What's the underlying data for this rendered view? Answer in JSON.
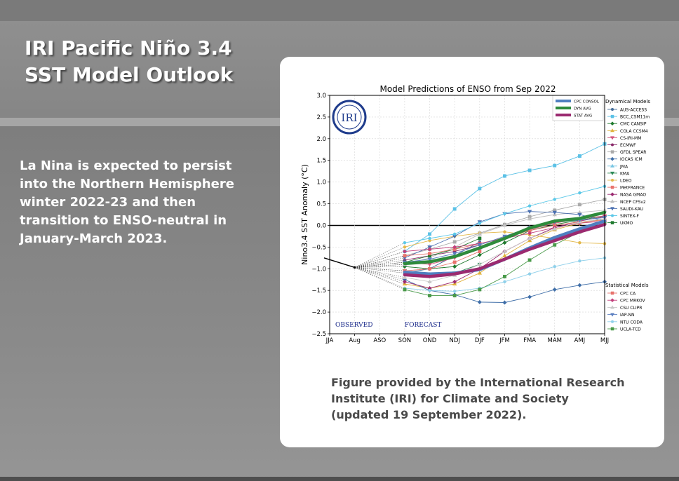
{
  "slide": {
    "title_lines": [
      "IRI Pacific Niño 3.4",
      "SST Model Outlook"
    ],
    "body_lines": [
      "La Nina is expected to persist",
      "into the Northern Hemisphere",
      "winter 2022-23 and then",
      "transition to ENSO-neutral in",
      "January-March 2023."
    ],
    "caption_lines": [
      "Figure provided by the International Research",
      "Institute (IRI) for Climate and Society",
      "(updated 19 September 2022)."
    ]
  },
  "chart_data": {
    "type": "line",
    "title": "Model Predictions of ENSO from Sep 2022",
    "xlabel": "",
    "ylabel": "Nino3.4 SST Anomaly (°C)",
    "logo_text": "IRI",
    "categories": [
      "JJA",
      "Aug",
      "ASO",
      "SON",
      "OND",
      "NDJ",
      "DJF",
      "JFM",
      "FMA",
      "MAM",
      "AMJ",
      "MJJ"
    ],
    "ylim": [
      -2.5,
      3.0
    ],
    "yticks": [
      "3.0",
      "2.5",
      "2.0",
      "1.5",
      "1.0",
      "0.5",
      "0.0",
      "−0.5",
      "−1.0",
      "−1.5",
      "−2.0",
      "−2.5"
    ],
    "ytick_values": [
      3.0,
      2.5,
      2.0,
      1.5,
      1.0,
      0.5,
      0.0,
      -0.5,
      -1.0,
      -1.5,
      -2.0,
      -2.5
    ],
    "observed_label": "OBSERVED",
    "forecast_label": "FORECAST",
    "observed": [
      -0.75,
      -0.97
    ],
    "legend_avg_title": "",
    "legend_dyn_title": "Dynamical Models",
    "legend_stat_title": "Statistical Models",
    "avg_series": [
      {
        "name": "CPC CONSOL",
        "color": "#4f7fc0",
        "values": [
          null,
          null,
          null,
          -1.08,
          -1.12,
          -1.1,
          -1.02,
          -0.78,
          -0.52,
          -0.28,
          -0.08,
          0.1
        ]
      },
      {
        "name": "DYN AVG",
        "color": "#2e8b3c",
        "values": [
          null,
          null,
          null,
          -0.88,
          -0.84,
          -0.72,
          -0.52,
          -0.3,
          -0.06,
          0.1,
          0.16,
          0.3
        ]
      },
      {
        "name": "STAT AVG",
        "color": "#9b2a70",
        "values": [
          null,
          null,
          null,
          -1.14,
          -1.18,
          -1.12,
          -1.0,
          -0.78,
          -0.55,
          -0.35,
          -0.15,
          0.02
        ]
      }
    ],
    "dynamical_models": [
      {
        "name": "AUS-ACCESS",
        "color": "#446e9a",
        "marker": "o",
        "values": [
          null,
          null,
          null,
          -1.1,
          -1.0,
          -0.7,
          -0.38,
          null,
          null,
          null,
          null,
          null
        ]
      },
      {
        "name": "BCC_CSM11m",
        "color": "#5bc1e6",
        "marker": "s",
        "values": [
          null,
          null,
          null,
          -0.6,
          -0.2,
          0.38,
          0.85,
          1.14,
          1.27,
          1.38,
          1.6,
          1.88
        ]
      },
      {
        "name": "CMC CANSIP",
        "color": "#1f7a2e",
        "marker": "D",
        "values": [
          null,
          null,
          null,
          -0.95,
          -1.0,
          -0.95,
          -0.68,
          -0.4,
          -0.12,
          0.02,
          0.12,
          0.22
        ]
      },
      {
        "name": "COLA CCSM4",
        "color": "#e0b13a",
        "marker": "^",
        "values": [
          null,
          null,
          null,
          -1.35,
          -1.45,
          -1.35,
          -1.1,
          -0.7,
          -0.35,
          -0.1,
          0.05,
          0.15
        ]
      },
      {
        "name": "CS-IRI-MM",
        "color": "#d4547c",
        "marker": "v",
        "values": [
          null,
          null,
          null,
          -0.85,
          -0.9,
          -0.75,
          -0.55,
          -0.3,
          -0.1,
          0.05,
          0.15,
          0.22
        ]
      },
      {
        "name": "ECMWF",
        "color": "#8a2a6a",
        "marker": "o",
        "values": [
          null,
          null,
          null,
          -0.8,
          -0.7,
          -0.6,
          -0.45,
          null,
          null,
          null,
          null,
          null
        ]
      },
      {
        "name": "GFDL SPEAR",
        "color": "#aaaaaa",
        "marker": "s",
        "values": [
          null,
          null,
          null,
          -0.7,
          -0.55,
          -0.38,
          -0.18,
          0.02,
          0.2,
          0.35,
          0.48,
          0.6
        ]
      },
      {
        "name": "IOCAS ICM",
        "color": "#3f6ea8",
        "marker": "D",
        "values": [
          null,
          null,
          null,
          -1.25,
          -1.5,
          -1.6,
          -1.77,
          -1.78,
          -1.65,
          -1.48,
          -1.38,
          -1.3
        ]
      },
      {
        "name": "JMA",
        "color": "#78c6e3",
        "marker": "^",
        "values": [
          null,
          null,
          null,
          -0.9,
          -0.82,
          -0.7,
          -0.52,
          null,
          null,
          null,
          null,
          null
        ]
      },
      {
        "name": "KMA",
        "color": "#2e8b57",
        "marker": "v",
        "values": [
          null,
          null,
          null,
          -1.05,
          -1.15,
          -1.1,
          -0.9,
          null,
          null,
          null,
          null,
          null
        ]
      },
      {
        "name": "LDEO",
        "color": "#e3b84a",
        "marker": "o",
        "values": [
          null,
          null,
          null,
          -0.5,
          -0.35,
          -0.25,
          -0.18,
          -0.15,
          -0.22,
          -0.3,
          -0.4,
          -0.42
        ]
      },
      {
        "name": "MetFRANCE",
        "color": "#e8736d",
        "marker": "s",
        "values": [
          null,
          null,
          null,
          -1.05,
          -1.0,
          -0.85,
          -0.6,
          null,
          null,
          null,
          null,
          null
        ]
      },
      {
        "name": "NASA GMAO",
        "color": "#9b2a70",
        "marker": "D",
        "values": [
          null,
          null,
          null,
          -1.3,
          -1.45,
          -1.3,
          -1.0,
          -0.6,
          -0.3,
          -0.05,
          0.1,
          0.2
        ]
      },
      {
        "name": "NCEP CFSv2",
        "color": "#c0c0c0",
        "marker": "^",
        "values": [
          null,
          null,
          null,
          -0.9,
          -0.75,
          -0.5,
          -0.2,
          0.0,
          0.15,
          0.25,
          0.3,
          0.35
        ]
      },
      {
        "name": "SAUDI-KAU",
        "color": "#4a6fb0",
        "marker": "v",
        "values": [
          null,
          null,
          null,
          -0.75,
          -0.5,
          -0.25,
          0.08,
          0.27,
          0.32,
          0.3,
          0.25,
          0.1
        ]
      },
      {
        "name": "SINTEX-F",
        "color": "#5bc8e8",
        "marker": "o",
        "values": [
          null,
          null,
          null,
          -0.4,
          -0.3,
          -0.2,
          0.05,
          0.27,
          0.45,
          0.6,
          0.75,
          0.9
        ]
      },
      {
        "name": "UKMO",
        "color": "#1f7a2e",
        "marker": "s",
        "values": [
          null,
          null,
          null,
          -0.85,
          -0.7,
          -0.55,
          -0.3,
          null,
          null,
          null,
          null,
          null
        ]
      }
    ],
    "statistical_models": [
      {
        "name": "CPC CA",
        "color": "#e8736d",
        "marker": "s",
        "values": [
          null,
          null,
          null,
          -0.7,
          -0.65,
          -0.55,
          -0.42,
          -0.28,
          -0.12,
          0.0,
          0.08,
          0.12
        ]
      },
      {
        "name": "CPC MRKOV",
        "color": "#c2407c",
        "marker": "D",
        "values": [
          null,
          null,
          null,
          -0.6,
          -0.55,
          -0.5,
          -0.42,
          -0.3,
          -0.18,
          -0.05,
          0.05,
          0.1
        ]
      },
      {
        "name": "CSU CLIPR",
        "color": "#c8c8c8",
        "marker": "^",
        "values": [
          null,
          null,
          null,
          -1.2,
          -1.3,
          -1.15,
          -0.9,
          -0.6,
          -0.3,
          -0.08,
          0.08,
          0.15
        ]
      },
      {
        "name": "IAP-NN",
        "color": "#5b7fc0",
        "marker": "v",
        "values": [
          null,
          null,
          null,
          -0.85,
          -0.78,
          -0.65,
          -0.45,
          -0.25,
          -0.05,
          0.08,
          0.12,
          0.18
        ]
      },
      {
        "name": "NTU CODA",
        "color": "#8fd0ea",
        "marker": "o",
        "values": [
          null,
          null,
          null,
          -1.45,
          -1.5,
          -1.52,
          -1.45,
          -1.3,
          -1.12,
          -0.95,
          -0.82,
          -0.75
        ]
      },
      {
        "name": "UCLA-TCD",
        "color": "#4a9a4a",
        "marker": "s",
        "values": [
          null,
          null,
          null,
          -1.48,
          -1.62,
          -1.62,
          -1.48,
          -1.18,
          -0.8,
          -0.45,
          -0.15,
          0.05
        ]
      }
    ]
  }
}
